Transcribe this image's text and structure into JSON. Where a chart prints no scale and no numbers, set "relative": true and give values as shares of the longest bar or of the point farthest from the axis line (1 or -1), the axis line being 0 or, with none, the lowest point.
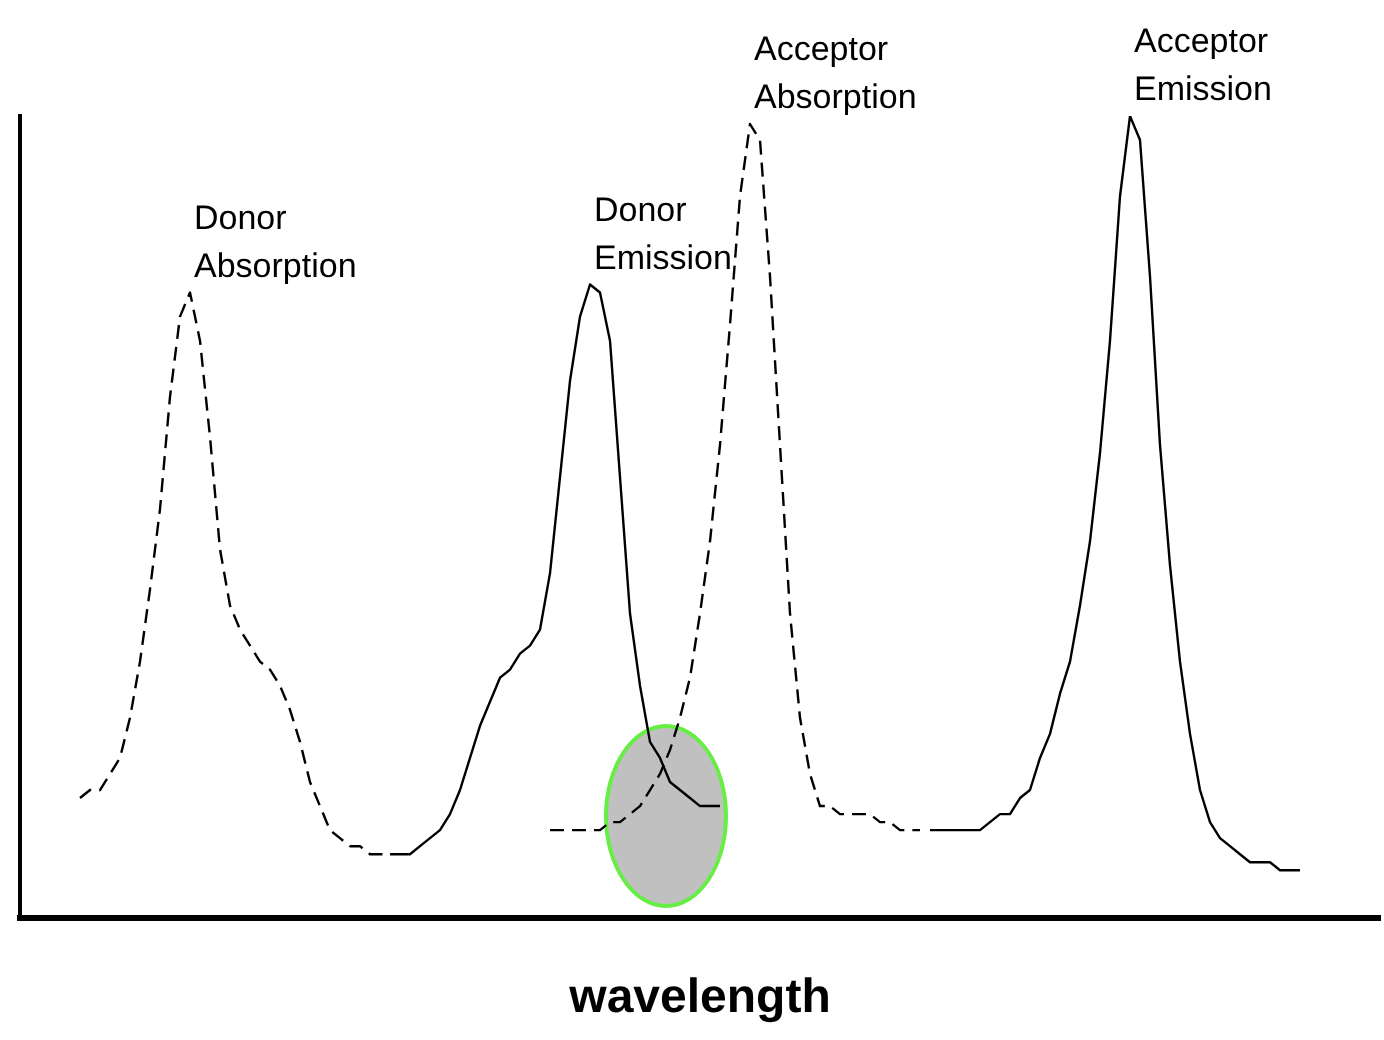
{
  "chart_data": {
    "type": "line",
    "xlabel": "wavelength",
    "relative": true,
    "tick_labels": false,
    "categories": [
      null,
      null,
      null,
      null,
      null,
      null,
      null,
      null,
      null,
      null,
      null,
      null,
      null,
      null,
      null,
      null,
      null,
      null,
      null,
      null,
      null,
      null,
      null,
      null,
      null,
      null,
      null,
      null,
      null,
      null,
      null,
      null,
      null,
      null,
      null,
      null,
      null,
      null,
      null,
      null,
      null,
      null,
      null,
      null,
      null,
      null,
      null,
      null,
      null,
      null,
      null,
      null,
      null,
      null,
      null,
      null,
      null,
      null,
      null,
      null,
      null,
      null,
      null,
      null,
      null,
      null,
      null,
      null,
      null,
      null,
      null,
      null,
      null,
      null,
      null,
      null,
      null,
      null,
      null,
      null,
      null,
      null,
      null,
      null,
      null,
      null,
      null,
      null,
      null,
      null,
      null,
      null,
      null,
      null,
      null,
      null,
      null,
      null,
      null,
      null,
      null,
      null,
      null,
      null,
      null,
      null,
      null,
      null,
      null,
      null,
      null,
      null,
      null,
      null,
      null,
      null,
      null,
      null,
      null,
      null,
      null,
      null,
      null,
      null,
      null,
      null,
      null,
      null,
      null,
      null,
      null,
      null,
      null,
      null,
      null,
      null,
      null
    ],
    "series": [
      {
        "name": "Donor Absorption",
        "color": "#000000",
        "line_style": "dashed",
        "values": [
          null,
          null,
          null,
          null,
          null,
          null,
          0.15,
          0.16,
          0.16,
          0.18,
          0.2,
          0.25,
          0.32,
          0.41,
          0.51,
          0.65,
          0.75,
          0.78,
          0.72,
          0.6,
          0.46,
          0.39,
          0.36,
          0.34,
          0.32,
          0.31,
          0.29,
          0.26,
          0.22,
          0.17,
          0.14,
          0.11,
          0.1,
          0.09,
          0.09,
          0.08,
          0.08,
          0.08,
          null,
          null,
          null,
          null,
          null,
          null,
          null,
          null,
          null,
          null,
          null,
          null,
          null,
          null,
          null,
          null,
          null,
          null,
          null,
          null,
          null,
          null,
          null,
          null,
          null,
          null,
          null,
          null,
          null,
          null,
          null,
          null,
          null,
          null,
          null,
          null,
          null,
          null,
          null,
          null,
          null,
          null,
          null,
          null,
          null,
          null,
          null,
          null,
          null,
          null,
          null,
          null,
          null,
          null,
          null,
          null,
          null,
          null,
          null,
          null,
          null,
          null,
          null,
          null,
          null,
          null,
          null,
          null,
          null,
          null,
          null,
          null,
          null,
          null,
          null,
          null,
          null,
          null,
          null,
          null,
          null,
          null,
          null,
          null,
          null,
          null,
          null,
          null,
          null,
          null,
          null,
          null,
          null,
          null,
          null,
          null,
          null,
          null,
          null
        ]
      },
      {
        "name": "Donor Emission",
        "color": "#000000",
        "line_style": "solid",
        "values": [
          null,
          null,
          null,
          null,
          null,
          null,
          null,
          null,
          null,
          null,
          null,
          null,
          null,
          null,
          null,
          null,
          null,
          null,
          null,
          null,
          null,
          null,
          null,
          null,
          null,
          null,
          null,
          null,
          null,
          null,
          null,
          null,
          null,
          null,
          null,
          null,
          null,
          0.08,
          0.08,
          0.08,
          0.09,
          0.1,
          0.11,
          0.13,
          0.16,
          0.2,
          0.24,
          0.27,
          0.3,
          0.31,
          0.33,
          0.34,
          0.36,
          0.43,
          0.55,
          0.67,
          0.75,
          0.79,
          0.78,
          0.72,
          0.55,
          0.38,
          0.29,
          0.22,
          0.2,
          0.17,
          0.16,
          0.15,
          0.14,
          0.14,
          0.14,
          null,
          null,
          null,
          null,
          null,
          null,
          null,
          null,
          null,
          null,
          null,
          null,
          null,
          null,
          null,
          null,
          null,
          null,
          null,
          null,
          null,
          null,
          null,
          null,
          null,
          null,
          null,
          null,
          null,
          null,
          null,
          null,
          null,
          null,
          null,
          null,
          null,
          null,
          null,
          null,
          null,
          null,
          null,
          null,
          null,
          null,
          null,
          null,
          null,
          null,
          null,
          null,
          null,
          null,
          null,
          null,
          null,
          null,
          null,
          null,
          null,
          null,
          null,
          null,
          null,
          null
        ]
      },
      {
        "name": "Acceptor Absorption",
        "color": "#000000",
        "line_style": "dashed",
        "values": [
          null,
          null,
          null,
          null,
          null,
          null,
          null,
          null,
          null,
          null,
          null,
          null,
          null,
          null,
          null,
          null,
          null,
          null,
          null,
          null,
          null,
          null,
          null,
          null,
          null,
          null,
          null,
          null,
          null,
          null,
          null,
          null,
          null,
          null,
          null,
          null,
          null,
          null,
          null,
          null,
          null,
          null,
          null,
          null,
          null,
          null,
          null,
          null,
          null,
          null,
          null,
          null,
          null,
          0.11,
          0.11,
          0.11,
          0.11,
          0.11,
          0.11,
          0.12,
          0.12,
          0.13,
          0.14,
          0.16,
          0.18,
          0.21,
          0.25,
          0.3,
          0.38,
          0.47,
          0.59,
          0.74,
          0.9,
          0.99,
          0.97,
          0.8,
          0.59,
          0.38,
          0.25,
          0.18,
          0.14,
          0.14,
          0.13,
          0.13,
          0.13,
          0.13,
          0.12,
          0.12,
          0.11,
          0.11,
          0.11,
          null,
          null,
          null,
          null,
          null,
          null,
          null,
          null,
          null,
          null,
          null,
          null,
          null,
          null,
          null,
          null,
          null,
          null,
          null,
          null,
          null,
          null,
          null,
          null,
          null,
          null,
          null,
          null,
          null,
          null,
          null,
          null,
          null,
          null,
          null,
          null,
          null,
          null,
          null,
          null,
          null,
          null,
          null,
          null,
          null,
          null
        ]
      },
      {
        "name": "Acceptor Emission",
        "color": "#000000",
        "line_style": "solid",
        "values": [
          null,
          null,
          null,
          null,
          null,
          null,
          null,
          null,
          null,
          null,
          null,
          null,
          null,
          null,
          null,
          null,
          null,
          null,
          null,
          null,
          null,
          null,
          null,
          null,
          null,
          null,
          null,
          null,
          null,
          null,
          null,
          null,
          null,
          null,
          null,
          null,
          null,
          null,
          null,
          null,
          null,
          null,
          null,
          null,
          null,
          null,
          null,
          null,
          null,
          null,
          null,
          null,
          null,
          null,
          null,
          null,
          null,
          null,
          null,
          null,
          null,
          null,
          null,
          null,
          null,
          null,
          null,
          null,
          null,
          null,
          null,
          null,
          null,
          null,
          null,
          null,
          null,
          null,
          null,
          null,
          null,
          null,
          null,
          null,
          null,
          null,
          null,
          null,
          null,
          null,
          null,
          0.11,
          0.11,
          0.11,
          0.11,
          0.11,
          0.11,
          0.12,
          0.13,
          0.13,
          0.15,
          0.16,
          0.2,
          0.23,
          0.28,
          0.32,
          0.39,
          0.47,
          0.58,
          0.72,
          0.9,
          1.0,
          0.97,
          0.8,
          0.59,
          0.44,
          0.32,
          0.23,
          0.16,
          0.12,
          0.1,
          0.09,
          0.08,
          0.07,
          0.07,
          0.07,
          0.06,
          0.06,
          0.06,
          null,
          null,
          null,
          null,
          null,
          null,
          null,
          null
        ]
      }
    ]
  }
}
